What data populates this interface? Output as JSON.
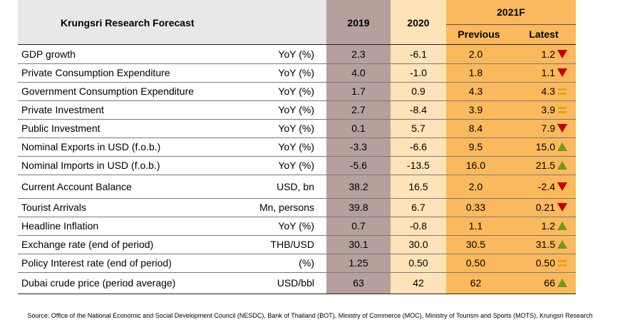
{
  "table": {
    "title": "Krungsri Research Forecast",
    "headers": {
      "y2019": "2019",
      "y2020": "2020",
      "y2021": "2021F",
      "previous": "Previous",
      "latest": "Latest"
    },
    "rows": [
      {
        "label": "GDP growth",
        "unit": "YoY (%)",
        "v2019": "2.3",
        "v2020": "-6.1",
        "previous": "2.0",
        "latest": "1.2",
        "trend": "down"
      },
      {
        "label": "Private Consumption Expenditure",
        "unit": "YoY (%)",
        "v2019": "4.0",
        "v2020": "-1.0",
        "previous": "1.8",
        "latest": "1.1",
        "trend": "down"
      },
      {
        "label": "Government Consumption Expenditure",
        "unit": "YoY (%)",
        "v2019": "1.7",
        "v2020": "0.9",
        "previous": "4.3",
        "latest": "4.3",
        "trend": "same"
      },
      {
        "label": "Private Investment",
        "unit": "YoY (%)",
        "v2019": "2.7",
        "v2020": "-8.4",
        "previous": "3.9",
        "latest": "3.9",
        "trend": "same"
      },
      {
        "label": "Public Investment",
        "unit": "YoY (%)",
        "v2019": "0.1",
        "v2020": "5.7",
        "previous": "8.4",
        "latest": "7.9",
        "trend": "down"
      },
      {
        "label": "Nominal Exports in USD (f.o.b.)",
        "unit": "YoY (%)",
        "v2019": "-3.3",
        "v2020": "-6.6",
        "previous": "9.5",
        "latest": "15.0",
        "trend": "up"
      },
      {
        "label": "Nominal Imports in USD (f.o.b.)",
        "unit": "YoY (%)",
        "v2019": "-5.6",
        "v2020": "-13.5",
        "previous": "16.0",
        "latest": "21.5",
        "trend": "up"
      },
      {
        "label": "Current Account Balance",
        "unit": "USD, bn",
        "v2019": "38.2",
        "v2020": "16.5",
        "previous": "2.0",
        "latest": "-2.4",
        "trend": "down"
      },
      {
        "label": "Tourist Arrivals",
        "unit": "Mn, persons",
        "v2019": "39.8",
        "v2020": "6.7",
        "previous": "0.33",
        "latest": "0.21",
        "trend": "down"
      },
      {
        "label": "Headline Inflation",
        "unit": "YoY (%)",
        "v2019": "0.7",
        "v2020": "-0.8",
        "previous": "1.1",
        "latest": "1.2",
        "trend": "up"
      },
      {
        "label": "Exchange rate (end of period)",
        "unit": "THB/USD",
        "v2019": "30.1",
        "v2020": "30.0",
        "previous": "30.5",
        "latest": "31.5",
        "trend": "up"
      },
      {
        "label": "Policy Interest rate (end of period)",
        "unit": "(%)",
        "v2019": "1.25",
        "v2020": "0.50",
        "previous": "0.50",
        "latest": "0.50",
        "trend": "same"
      },
      {
        "label": "Dubai crude price (period average)",
        "unit": "USD/bbl",
        "v2019": "63",
        "v2020": "42",
        "previous": "62",
        "latest": "66",
        "trend": "up"
      }
    ]
  },
  "source": "Source: Office of the National Economic and Social Development Council (NESDC), Bank of Thailand (BOT), Ministry of Commerce (MOC), Ministry of Tourism and Sports (MOTS), Krungsri Research",
  "colors": {
    "up": "#6a9a1f",
    "down": "#c00000",
    "same": "#e8a020"
  }
}
